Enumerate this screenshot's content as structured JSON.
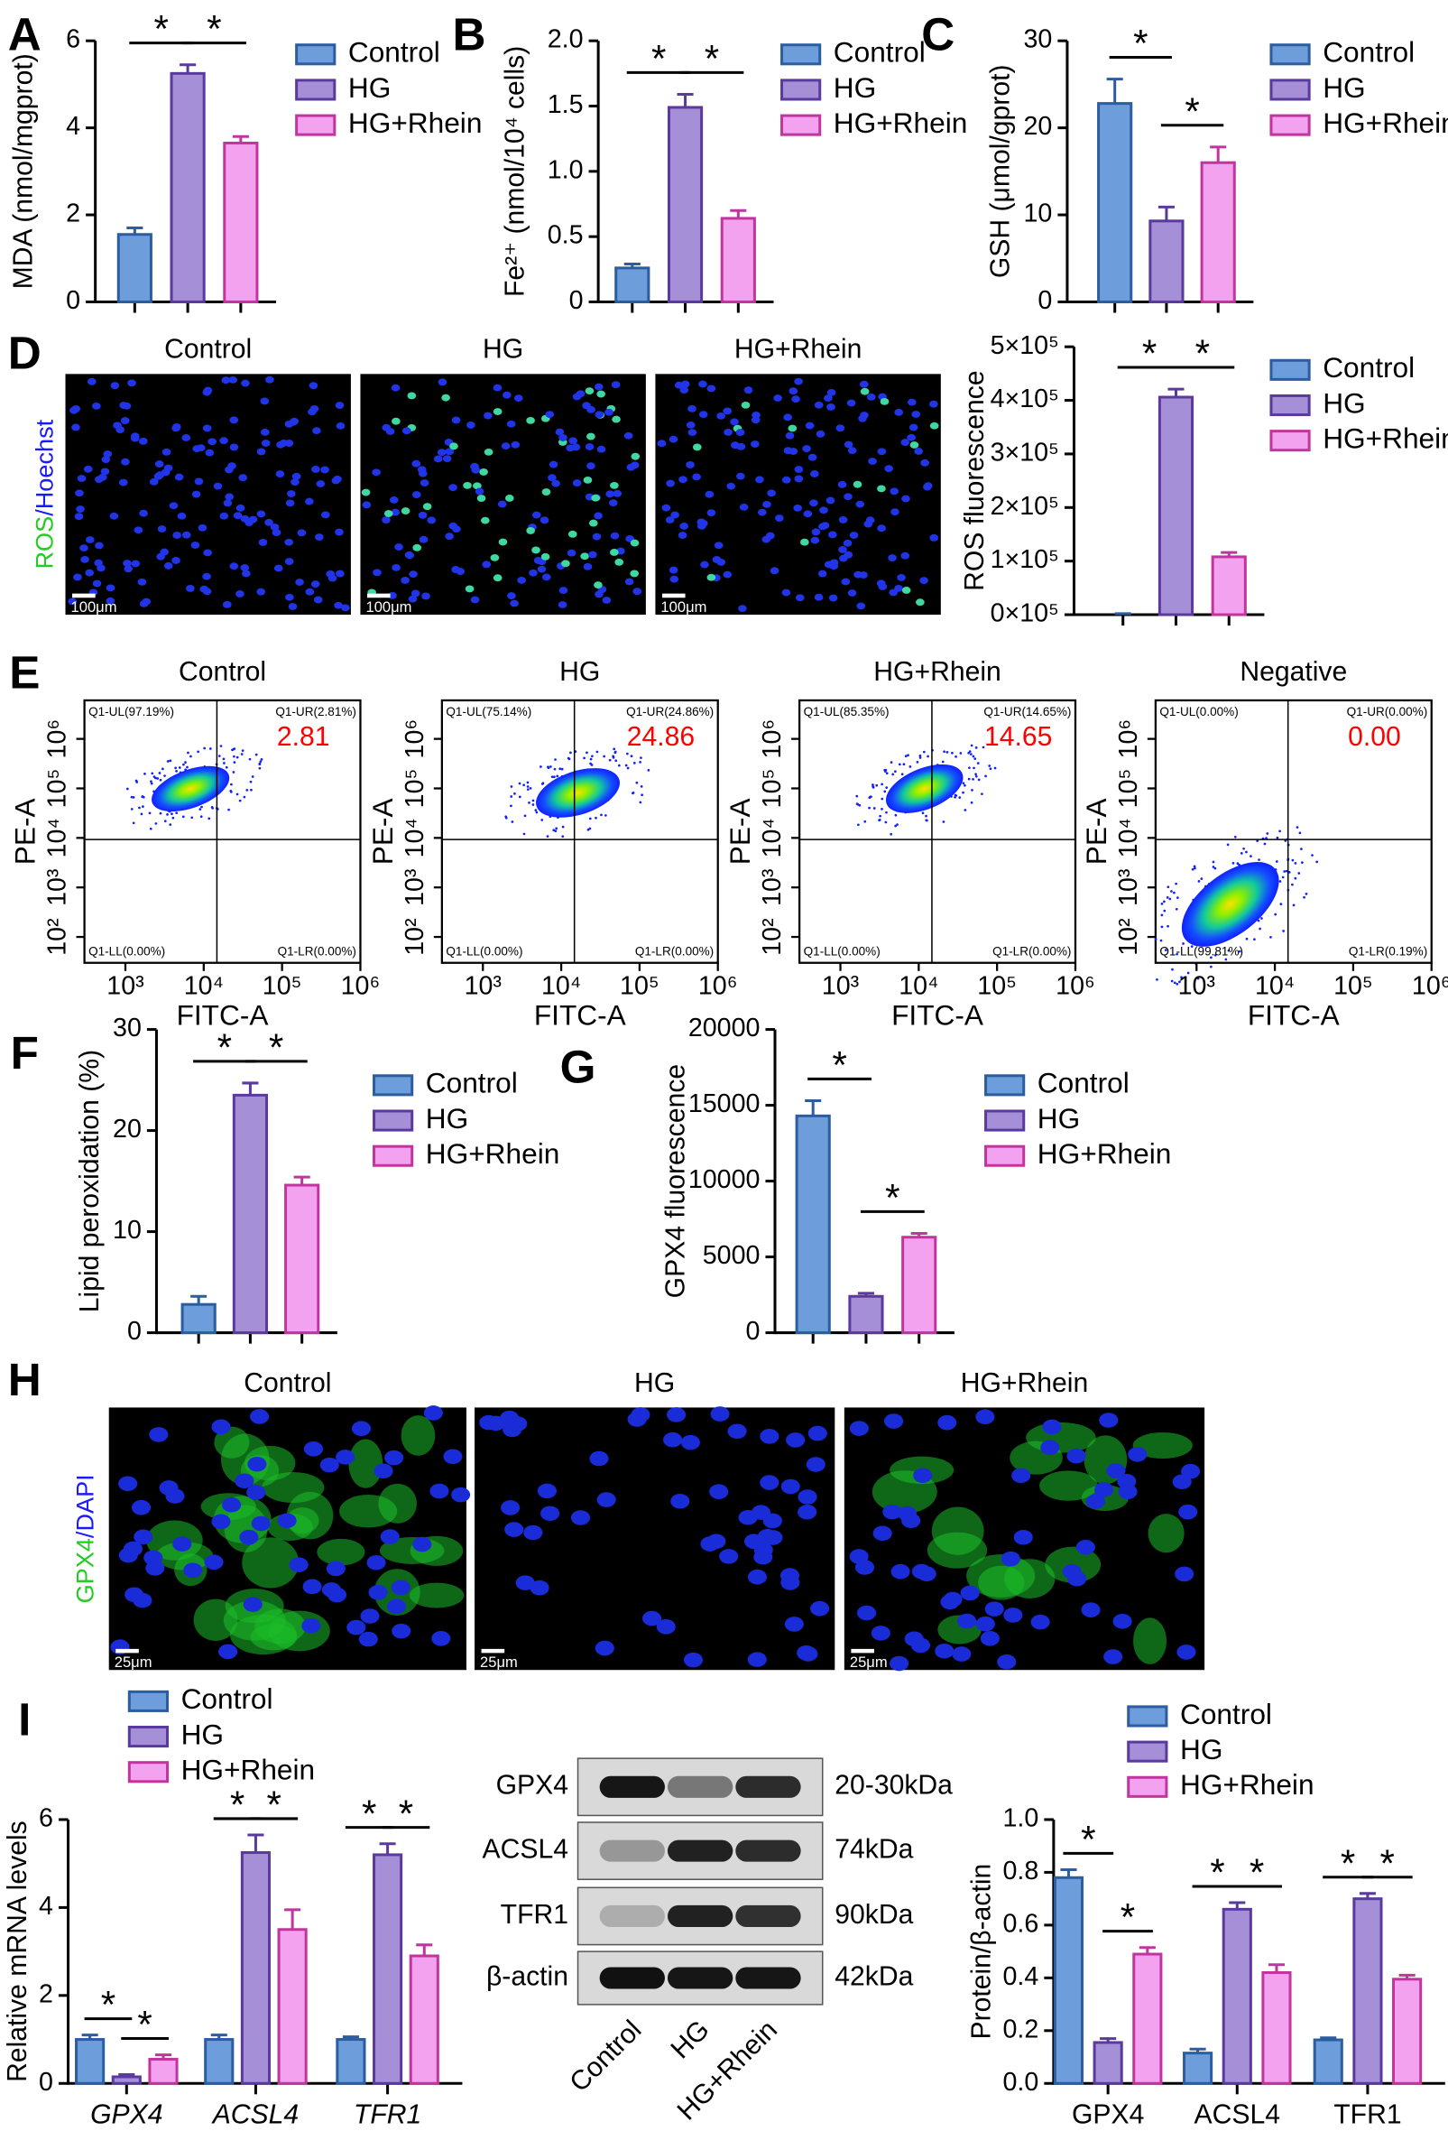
{
  "panel_labels": [
    "A",
    "B",
    "C",
    "D",
    "E",
    "F",
    "G",
    "H",
    "I"
  ],
  "ros_images": {
    "titles": [
      "Control",
      "HG",
      "HG+Rhein"
    ],
    "stain": [
      "ROS",
      "/Hoechst"
    ],
    "scale": "100μm"
  },
  "gpx4_images": {
    "titles": [
      "Control",
      "HG",
      "HG+Rhein"
    ],
    "stain": [
      "GPX4",
      "/DAPI"
    ],
    "scale": "25μm"
  },
  "western": {
    "proteins": [
      "GPX4",
      "ACSL4",
      "TFR1",
      "β-actin"
    ],
    "sizes": [
      "20-30kDa",
      "74kDa",
      "90kDa",
      "42kDa"
    ],
    "lanes": [
      "Control",
      "HG",
      "HG+Rhein"
    ]
  },
  "chart_data": [
    {
      "type": "bar",
      "ylabel": "MDA (nmol/mgprot)",
      "ylim": [
        0,
        6
      ],
      "yticks": [
        0,
        2,
        4,
        6
      ],
      "series": [
        {
          "name": "Control",
          "color": "#6d9edb",
          "edgecolor": "#2b5d9f",
          "values": [
            1.55
          ],
          "errors": [
            0.15
          ]
        },
        {
          "name": "HG",
          "color": "#a58fd6",
          "edgecolor": "#5b3a9e",
          "values": [
            5.25
          ],
          "errors": [
            0.2
          ]
        },
        {
          "name": "HG+Rhein",
          "color": "#f3a2ef",
          "edgecolor": "#c2359e",
          "values": [
            3.65
          ],
          "errors": [
            0.15
          ]
        }
      ],
      "significance": [
        {
          "between": [
            "Control",
            "HG"
          ],
          "label": "*"
        },
        {
          "between": [
            "HG",
            "HG+Rhein"
          ],
          "label": "*"
        }
      ]
    },
    {
      "type": "bar",
      "ylabel": "Fe²⁺ (nmol/10⁴ cells)",
      "ylim": [
        0,
        2
      ],
      "yticks": [
        0,
        0.5,
        {
          "value": 1,
          "label": "1.0"
        },
        1.5,
        {
          "value": 2,
          "label": "2.0"
        }
      ],
      "series": [
        {
          "name": "Control",
          "color": "#6d9edb",
          "edgecolor": "#2b5d9f",
          "values": [
            0.26
          ],
          "errors": [
            0.03
          ]
        },
        {
          "name": "HG",
          "color": "#a58fd6",
          "edgecolor": "#5b3a9e",
          "values": [
            1.49
          ],
          "errors": [
            0.1
          ]
        },
        {
          "name": "HG+Rhein",
          "color": "#f3a2ef",
          "edgecolor": "#c2359e",
          "values": [
            0.64
          ],
          "errors": [
            0.06
          ]
        }
      ],
      "significance": [
        {
          "between": [
            "Control",
            "HG"
          ],
          "label": "*"
        },
        {
          "between": [
            "HG",
            "HG+Rhein"
          ],
          "label": "*"
        }
      ]
    },
    {
      "type": "bar",
      "ylabel": "GSH (μmol/gprot)",
      "ylim": [
        0,
        30
      ],
      "yticks": [
        0,
        10,
        20,
        30
      ],
      "series": [
        {
          "name": "Control",
          "color": "#6d9edb",
          "edgecolor": "#2b5d9f",
          "values": [
            22.8
          ],
          "errors": [
            2.8
          ]
        },
        {
          "name": "HG",
          "color": "#a58fd6",
          "edgecolor": "#5b3a9e",
          "values": [
            9.3
          ],
          "errors": [
            1.6
          ]
        },
        {
          "name": "HG+Rhein",
          "color": "#f3a2ef",
          "edgecolor": "#c2359e",
          "values": [
            16
          ],
          "errors": [
            1.8
          ]
        }
      ],
      "significance": [
        {
          "between": [
            "Control",
            "HG"
          ],
          "label": "*"
        },
        {
          "between": [
            "HG",
            "HG+Rhein"
          ],
          "label": "*"
        }
      ]
    },
    {
      "type": "bar",
      "ylabel": "ROS fluorescence",
      "ylim": [
        0,
        500000
      ],
      "yticks": [
        {
          "value": 0,
          "label": "0×10⁵"
        },
        {
          "value": 100000,
          "label": "1×10⁵"
        },
        {
          "value": 200000,
          "label": "2×10⁵"
        },
        {
          "value": 300000,
          "label": "3×10⁵"
        },
        {
          "value": 400000,
          "label": "4×10⁵"
        },
        {
          "value": 500000,
          "label": "5×10⁵"
        }
      ],
      "series": [
        {
          "name": "Control",
          "color": "#6d9edb",
          "edgecolor": "#2b5d9f",
          "values": [
            0
          ],
          "errors": [
            2000
          ]
        },
        {
          "name": "HG",
          "color": "#a58fd6",
          "edgecolor": "#5b3a9e",
          "values": [
            406000
          ],
          "errors": [
            15000
          ]
        },
        {
          "name": "HG+Rhein",
          "color": "#f3a2ef",
          "edgecolor": "#c2359e",
          "values": [
            108000
          ],
          "errors": [
            8000
          ]
        }
      ],
      "significance": [
        {
          "between": [
            "Control",
            "HG"
          ],
          "label": "*"
        },
        {
          "between": [
            "HG",
            "HG+Rhein"
          ],
          "label": "*"
        }
      ]
    },
    {
      "type": "flow",
      "title": "Control",
      "xlabel": "FITC-A",
      "ylabel": "PE-A",
      "xscale": "log",
      "yscale": "log",
      "xlim": [
        300,
        1000000
      ],
      "ylim": [
        30,
        6000000
      ],
      "xticks": [
        {
          "value": 1000,
          "label": "10³"
        },
        {
          "value": 10000,
          "label": "10⁴"
        },
        {
          "value": 100000,
          "label": "10⁵"
        },
        {
          "value": 1000000,
          "label": "10⁶"
        }
      ],
      "yticks": [
        {
          "value": 100,
          "label": "10²"
        },
        {
          "value": 1000,
          "label": "10³"
        },
        {
          "value": 10000,
          "label": "10⁴"
        },
        {
          "value": 100000,
          "label": "10⁵"
        },
        {
          "value": 1000000,
          "label": "10⁶"
        }
      ],
      "quadrants": [
        "Q1-UL(97.19%)",
        "Q1-UR(2.81%)",
        "Q1-LL(0.00%)",
        "Q1-LR(0.00%)"
      ],
      "highlight": 2.81,
      "highlight_color": "#ff0000"
    },
    {
      "type": "flow",
      "title": "HG",
      "xlabel": "FITC-A",
      "ylabel": "PE-A",
      "xscale": "log",
      "yscale": "log",
      "xlim": [
        300,
        1000000
      ],
      "ylim": [
        30,
        6000000
      ],
      "xticks": [
        {
          "value": 1000,
          "label": "10³"
        },
        {
          "value": 10000,
          "label": "10⁴"
        },
        {
          "value": 100000,
          "label": "10⁵"
        },
        {
          "value": 1000000,
          "label": "10⁶"
        }
      ],
      "yticks": [
        {
          "value": 100,
          "label": "10²"
        },
        {
          "value": 1000,
          "label": "10³"
        },
        {
          "value": 10000,
          "label": "10⁴"
        },
        {
          "value": 100000,
          "label": "10⁵"
        },
        {
          "value": 1000000,
          "label": "10⁶"
        }
      ],
      "quadrants": [
        "Q1-UL(75.14%)",
        "Q1-UR(24.86%)",
        "Q1-LL(0.00%)",
        "Q1-LR(0.00%)"
      ],
      "highlight": 24.86,
      "highlight_color": "#ff0000"
    },
    {
      "type": "flow",
      "title": "HG+Rhein",
      "xlabel": "FITC-A",
      "ylabel": "PE-A",
      "xscale": "log",
      "yscale": "log",
      "xlim": [
        300,
        1000000
      ],
      "ylim": [
        30,
        6000000
      ],
      "xticks": [
        {
          "value": 1000,
          "label": "10³"
        },
        {
          "value": 10000,
          "label": "10⁴"
        },
        {
          "value": 100000,
          "label": "10⁵"
        },
        {
          "value": 1000000,
          "label": "10⁶"
        }
      ],
      "yticks": [
        {
          "value": 100,
          "label": "10²"
        },
        {
          "value": 1000,
          "label": "10³"
        },
        {
          "value": 10000,
          "label": "10⁴"
        },
        {
          "value": 100000,
          "label": "10⁵"
        },
        {
          "value": 1000000,
          "label": "10⁶"
        }
      ],
      "quadrants": [
        "Q1-UL(85.35%)",
        "Q1-UR(14.65%)",
        "Q1-LL(0.00%)",
        "Q1-LR(0.00%)"
      ],
      "highlight": 14.65,
      "highlight_color": "#ff0000"
    },
    {
      "type": "flow",
      "title": "Negative",
      "xlabel": "FITC-A",
      "ylabel": "PE-A",
      "xscale": "log",
      "yscale": "log",
      "xlim": [
        300,
        1000000
      ],
      "ylim": [
        30,
        6000000
      ],
      "xticks": [
        {
          "value": 1000,
          "label": "10³"
        },
        {
          "value": 10000,
          "label": "10⁴"
        },
        {
          "value": 100000,
          "label": "10⁵"
        },
        {
          "value": 1000000,
          "label": "10⁶"
        }
      ],
      "yticks": [
        {
          "value": 100,
          "label": "10²"
        },
        {
          "value": 1000,
          "label": "10³"
        },
        {
          "value": 10000,
          "label": "10⁴"
        },
        {
          "value": 100000,
          "label": "10⁵"
        },
        {
          "value": 1000000,
          "label": "10⁶"
        }
      ],
      "quadrants": [
        "Q1-UL(0.00%)",
        "Q1-UR(0.00%)",
        "Q1-LL(99.81%)",
        "Q1-LR(0.19%)"
      ],
      "highlight": {
        "value": 0,
        "label": "0.00"
      },
      "highlight_color": "#ff0000"
    },
    {
      "type": "bar",
      "ylabel": "Lipid peroxidation (%)",
      "ylim": [
        0,
        30
      ],
      "yticks": [
        0,
        10,
        20,
        30
      ],
      "series": [
        {
          "name": "Control",
          "color": "#6d9edb",
          "edgecolor": "#2b5d9f",
          "values": [
            2.8
          ],
          "errors": [
            0.8
          ]
        },
        {
          "name": "HG",
          "color": "#a58fd6",
          "edgecolor": "#5b3a9e",
          "values": [
            23.5
          ],
          "errors": [
            1.2
          ]
        },
        {
          "name": "HG+Rhein",
          "color": "#f3a2ef",
          "edgecolor": "#c2359e",
          "values": [
            14.6
          ],
          "errors": [
            0.8
          ]
        }
      ],
      "significance": [
        {
          "between": [
            "Control",
            "HG"
          ],
          "label": "*"
        },
        {
          "between": [
            "HG",
            "HG+Rhein"
          ],
          "label": "*"
        }
      ]
    },
    {
      "type": "bar",
      "ylabel": "GPX4 fluorescence",
      "ylim": [
        0,
        20000
      ],
      "yticks": [
        0,
        5000,
        10000,
        15000,
        20000
      ],
      "series": [
        {
          "name": "Control",
          "color": "#6d9edb",
          "edgecolor": "#2b5d9f",
          "values": [
            14300
          ],
          "errors": [
            1000
          ]
        },
        {
          "name": "HG",
          "color": "#a58fd6",
          "edgecolor": "#5b3a9e",
          "values": [
            2400
          ],
          "errors": [
            200
          ]
        },
        {
          "name": "HG+Rhein",
          "color": "#f3a2ef",
          "edgecolor": "#c2359e",
          "values": [
            6300
          ],
          "errors": [
            250
          ]
        }
      ],
      "significance": [
        {
          "between": [
            "Control",
            "HG"
          ],
          "label": "*"
        },
        {
          "between": [
            "HG",
            "HG+Rhein"
          ],
          "label": "*"
        }
      ]
    },
    {
      "type": "bar",
      "ylabel": "Relative mRNA levels",
      "ylim": [
        0,
        6
      ],
      "yticks": [
        0,
        2,
        4,
        6
      ],
      "categories": [
        "GPX4",
        "ACSL4",
        "TFR1"
      ],
      "category_font_style": "italic",
      "series": [
        {
          "name": "Control",
          "color": "#6d9edb",
          "edgecolor": "#2b5d9f",
          "values": [
            1.0,
            1.0,
            1.0
          ],
          "errors": [
            0.1,
            0.1,
            0.06
          ]
        },
        {
          "name": "HG",
          "color": "#a58fd6",
          "edgecolor": "#5b3a9e",
          "values": [
            0.15,
            5.25,
            5.2
          ],
          "errors": [
            0.05,
            0.4,
            0.25
          ]
        },
        {
          "name": "HG+Rhein",
          "color": "#f3a2ef",
          "edgecolor": "#c2359e",
          "values": [
            0.55,
            3.5,
            2.9
          ],
          "errors": [
            0.1,
            0.45,
            0.25
          ]
        }
      ],
      "significance": [
        {
          "group": "GPX4",
          "between": [
            "Control",
            "HG"
          ],
          "label": "*"
        },
        {
          "group": "GPX4",
          "between": [
            "HG",
            "HG+Rhein"
          ],
          "label": "*"
        },
        {
          "group": "ACSL4",
          "between": [
            "Control",
            "HG"
          ],
          "label": "*"
        },
        {
          "group": "ACSL4",
          "between": [
            "HG",
            "HG+Rhein"
          ],
          "label": "*"
        },
        {
          "group": "TFR1",
          "between": [
            "Control",
            "HG"
          ],
          "label": "*"
        },
        {
          "group": "TFR1",
          "between": [
            "HG",
            "HG+Rhein"
          ],
          "label": "*"
        }
      ]
    },
    {
      "type": "bar",
      "ylabel": "Protein/β-actin",
      "ylim": [
        0,
        1
      ],
      "yticks": [
        {
          "value": 0,
          "label": "0.0"
        },
        0.2,
        0.4,
        0.6,
        0.8,
        {
          "value": 1,
          "label": "1.0"
        }
      ],
      "categories": [
        "GPX4",
        "ACSL4",
        "TFR1"
      ],
      "series": [
        {
          "name": "Control",
          "color": "#6d9edb",
          "edgecolor": "#2b5d9f",
          "values": [
            0.78,
            0.115,
            0.165
          ],
          "errors": [
            0.03,
            0.015,
            0.008
          ]
        },
        {
          "name": "HG",
          "color": "#a58fd6",
          "edgecolor": "#5b3a9e",
          "values": [
            0.155,
            0.66,
            0.7
          ],
          "errors": [
            0.015,
            0.025,
            0.02
          ]
        },
        {
          "name": "HG+Rhein",
          "color": "#f3a2ef",
          "edgecolor": "#c2359e",
          "values": [
            0.49,
            0.42,
            0.395
          ],
          "errors": [
            0.025,
            0.03,
            0.015
          ]
        }
      ],
      "significance": [
        {
          "group": "GPX4",
          "between": [
            "Control",
            "HG"
          ],
          "label": "*"
        },
        {
          "group": "GPX4",
          "between": [
            "HG",
            "HG+Rhein"
          ],
          "label": "*"
        },
        {
          "group": "ACSL4",
          "between": [
            "Control",
            "HG"
          ],
          "label": "*"
        },
        {
          "group": "ACSL4",
          "between": [
            "HG",
            "HG+Rhein"
          ],
          "label": "*"
        },
        {
          "group": "TFR1",
          "between": [
            "Control",
            "HG"
          ],
          "label": "*"
        },
        {
          "group": "TFR1",
          "between": [
            "HG",
            "HG+Rhein"
          ],
          "label": "*"
        }
      ]
    }
  ]
}
